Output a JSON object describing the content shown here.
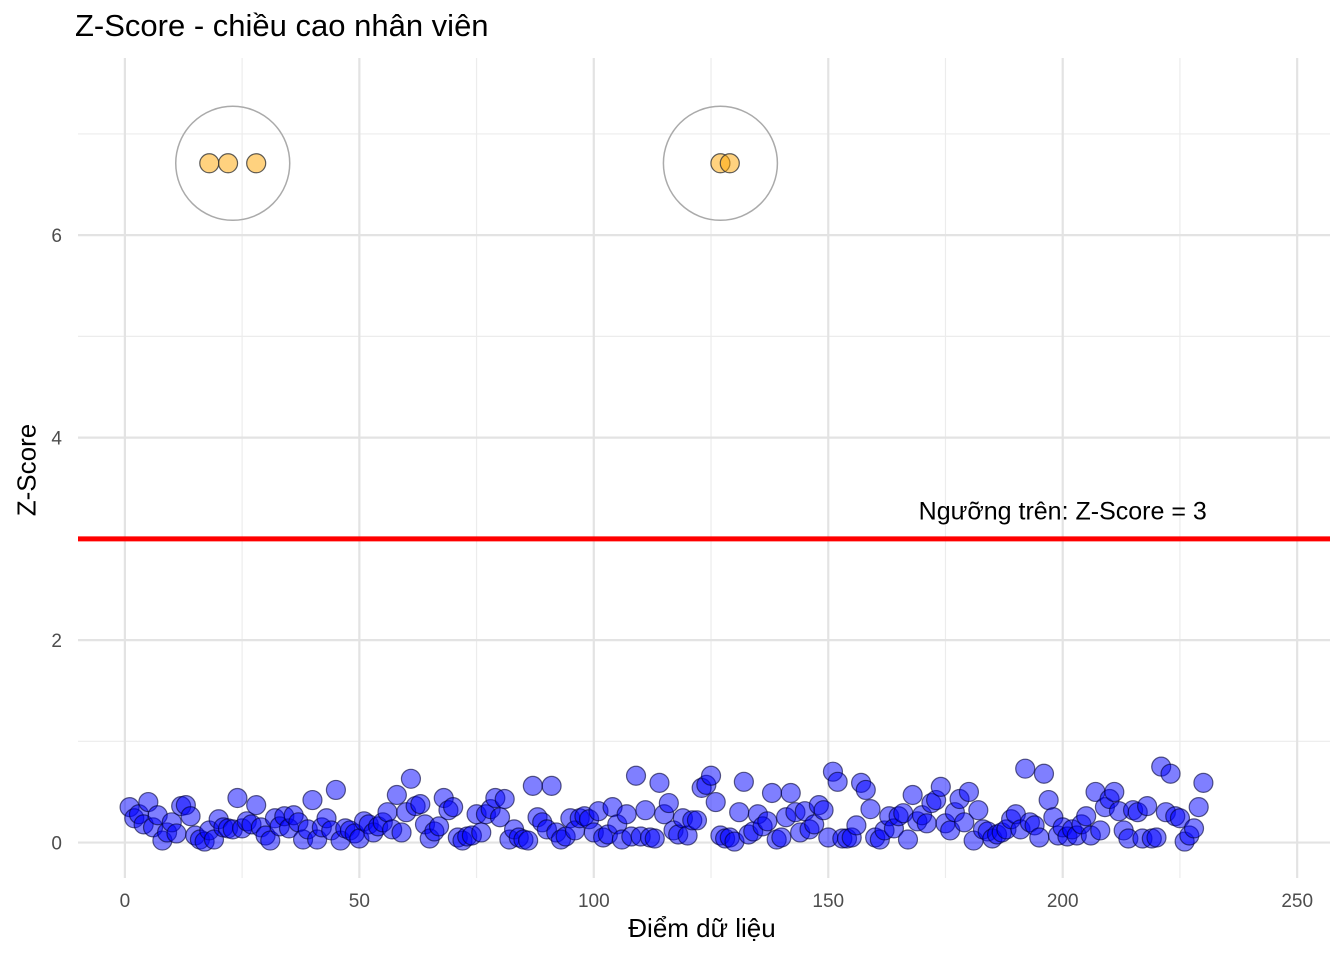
{
  "chart_data": {
    "type": "scatter",
    "title": "Z-Score - chiều cao nhân viên",
    "xlabel": "Điểm dữ liệu",
    "ylabel": "Z-Score",
    "xlim": [
      -10,
      257
    ],
    "ylim": [
      -0.35,
      7.75
    ],
    "x_ticks": [
      0,
      50,
      100,
      150,
      200,
      250
    ],
    "y_ticks": [
      0,
      2,
      4,
      6
    ],
    "grid": true,
    "threshold": {
      "y": 3,
      "color": "#ff0000",
      "label": "Ngưỡng trên: Z-Score = 3",
      "label_x": 200,
      "label_y": 3.28
    },
    "normal_color": "#0000ff",
    "outlier_color": "#ffa500",
    "normal_values": [
      0.35,
      0.24,
      0.28,
      0.18,
      0.4,
      0.15,
      0.27,
      0.02,
      0.1,
      0.2,
      0.09,
      0.36,
      0.37,
      0.26,
      0.07,
      0.03,
      0.01,
      0.12,
      0.03,
      0.23,
      0.15,
      0.14,
      0.13,
      0.44,
      0.14,
      0.21,
      0.18,
      0.37,
      0.15,
      0.07,
      0.02,
      0.24,
      0.16,
      0.26,
      0.14,
      0.27,
      0.2,
      0.03,
      0.13,
      0.42,
      0.03,
      0.15,
      0.24,
      0.12,
      0.52,
      0.02,
      0.14,
      0.12,
      0.09,
      0.04,
      0.21,
      0.18,
      0.1,
      0.16,
      0.2,
      0.3,
      0.13,
      0.47,
      0.1,
      0.3,
      0.63,
      0.36,
      0.38,
      0.18,
      0.04,
      0.11,
      0.16,
      0.44,
      0.32,
      0.35,
      0.05,
      0.02,
      0.06,
      0.07,
      0.28,
      0.1,
      0.28,
      0.33,
      0.44,
      0.25,
      0.43,
      0.03,
      0.13,
      0.05,
      0.03,
      0.02,
      0.56,
      0.25,
      0.2,
      0.13,
      0.56,
      0.1,
      0.03,
      0.06,
      0.24,
      0.12,
      0.24,
      0.26,
      0.23,
      0.1,
      0.31,
      0.05,
      0.08,
      0.35,
      0.18,
      0.03,
      0.28,
      0.06,
      0.66,
      0.06,
      0.32,
      0.05,
      0.04,
      0.59,
      0.28,
      0.39,
      0.12,
      0.08,
      0.24,
      0.07,
      0.22,
      0.22,
      0.54,
      0.57,
      0.66,
      0.4,
      0.07,
      0.04,
      0.05,
      0.01,
      0.3,
      0.6,
      0.08,
      0.11,
      0.28,
      0.16,
      0.21,
      0.49,
      0.03,
      0.05,
      0.25,
      0.49,
      0.3,
      0.1,
      0.31,
      0.13,
      0.18,
      0.37,
      0.32,
      0.05,
      0.7,
      0.6,
      0.04,
      0.04,
      0.05,
      0.17,
      0.59,
      0.52,
      0.33,
      0.05,
      0.03,
      0.12,
      0.26,
      0.14,
      0.26,
      0.29,
      0.03,
      0.47,
      0.21,
      0.27,
      0.19,
      0.39,
      0.42,
      0.55,
      0.19,
      0.12,
      0.3,
      0.43,
      0.2,
      0.5,
      0.02,
      0.32,
      0.13,
      0.11,
      0.04,
      0.08,
      0.1,
      0.13,
      0.23,
      0.28,
      0.13,
      0.73,
      0.2,
      0.17,
      0.05,
      0.68,
      0.42,
      0.25,
      0.07,
      0.15,
      0.06,
      0.13,
      0.07,
      0.18,
      0.26,
      0.07,
      0.5,
      0.12,
      0.35,
      0.43,
      0.5,
      0.31,
      0.12,
      0.04,
      0.32,
      0.3,
      0.04,
      0.36,
      0.04,
      0.05,
      0.75,
      0.3,
      0.68,
      0.26,
      0.24,
      0.01,
      0.07,
      0.14,
      0.35,
      0.59
    ],
    "outliers": [
      {
        "x": 18,
        "y": 6.71
      },
      {
        "x": 22,
        "y": 6.71
      },
      {
        "x": 28,
        "y": 6.71
      },
      {
        "x": 127,
        "y": 6.71
      },
      {
        "x": 129,
        "y": 6.71
      }
    ],
    "highlight_circles": [
      {
        "cx": 23,
        "cy": 6.71
      },
      {
        "cx": 127,
        "cy": 6.71
      }
    ]
  }
}
